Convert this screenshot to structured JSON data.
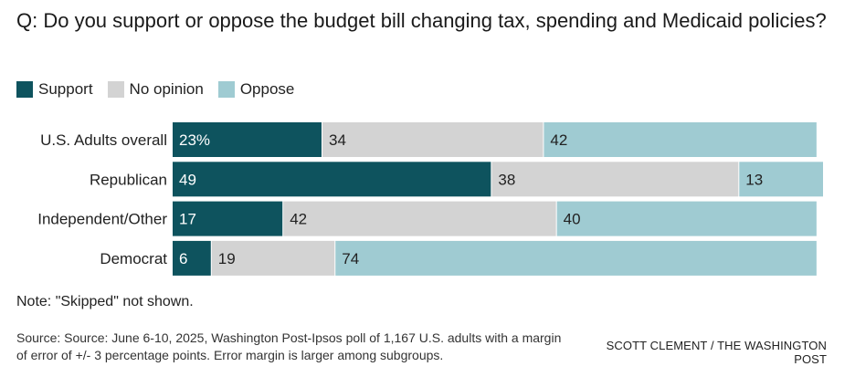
{
  "chart_data": {
    "type": "bar",
    "orientation": "horizontal",
    "stacked": true,
    "title": "Q: Do you support or oppose the budget bill changing tax, spending and Medicaid policies?",
    "categories": [
      "U.S. Adults overall",
      "Republican",
      "Independent/Other",
      "Democrat"
    ],
    "series": [
      {
        "name": "Support",
        "color": "#0e535e",
        "values": [
          23,
          49,
          17,
          6
        ],
        "labels": [
          "23%",
          "49",
          "17",
          "6"
        ]
      },
      {
        "name": "No opinion",
        "color": "#d3d3d3",
        "values": [
          34,
          38,
          42,
          19
        ],
        "labels": [
          "34",
          "38",
          "42",
          "19"
        ]
      },
      {
        "name": "Oppose",
        "color": "#9fcbd2",
        "values": [
          42,
          13,
          40,
          74
        ],
        "labels": [
          "42",
          "13",
          "40",
          "74"
        ]
      }
    ],
    "xlim": [
      0,
      100
    ],
    "legend_position": "top-left"
  },
  "note": "Note: \"Skipped\" not shown.",
  "source": "Source: Source: June 6-10, 2025, Washington Post-Ipsos poll of 1,167 U.S. adults with a margin of error of +/- 3 percentage points. Error margin is larger among subgroups.",
  "credit": "SCOTT CLEMENT / THE WASHINGTON POST"
}
